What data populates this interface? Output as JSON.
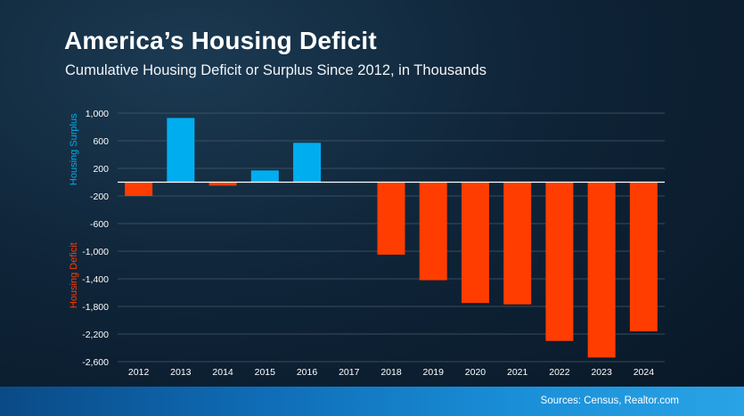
{
  "title": "America’s Housing Deficit",
  "subtitle": "Cumulative Housing Deficit or Surplus Since 2012, in Thousands",
  "source": "Sources: Census, Realtor.com",
  "colors": {
    "surplus": "#00aeef",
    "deficit": "#ff3d00",
    "grid": "#4a5a68",
    "zero_line": "#ffffff",
    "tick_text": "#ffffff"
  },
  "chart_data": {
    "type": "bar",
    "title": "America’s Housing Deficit",
    "subtitle": "Cumulative Housing Deficit or Surplus Since 2012, in Thousands",
    "categories": [
      "2012",
      "2013",
      "2014",
      "2015",
      "2016",
      "2017",
      "2018",
      "2019",
      "2020",
      "2021",
      "2022",
      "2023",
      "2024"
    ],
    "values": [
      -200,
      930,
      -50,
      170,
      570,
      0,
      -1050,
      -1420,
      -1750,
      -1770,
      -2300,
      -2540,
      -2160
    ],
    "ylim": [
      -2600,
      1000
    ],
    "yticks": [
      1000,
      600,
      200,
      -200,
      -600,
      -1000,
      -1400,
      -1800,
      -2200,
      -2600
    ],
    "ytick_labels": [
      "1,000",
      "600",
      "200",
      "-200",
      "-600",
      "-1,000",
      "-1,400",
      "-1,800",
      "-2,200",
      "-2,600"
    ],
    "ylabel_positive": "Housing Surplus",
    "ylabel_negative": "Housing Deficit",
    "grid": true,
    "legend": "none"
  }
}
